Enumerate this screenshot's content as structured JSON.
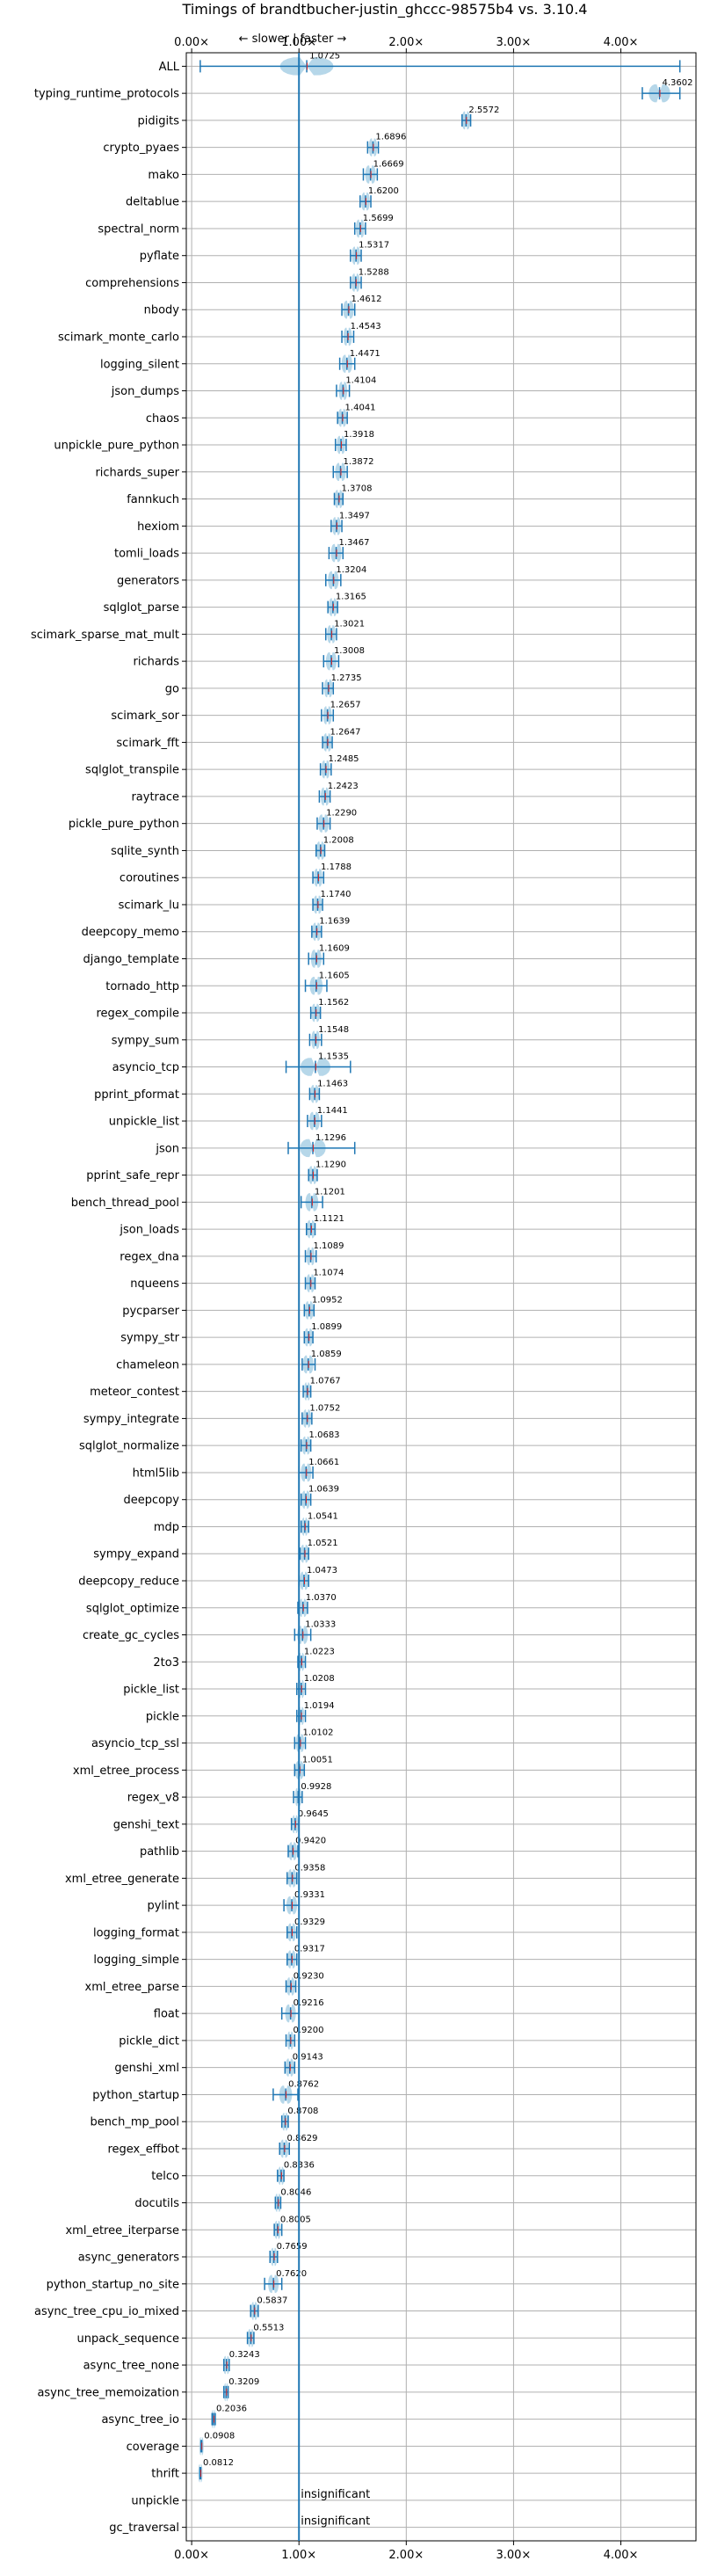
{
  "chart_data": {
    "type": "violin",
    "title": "Timings of brandtbucher-justin_ghccc-98575b4 vs. 3.10.4",
    "direction_hint": "← slower | faster →",
    "x_ticks": [
      "0.00×",
      "1.00×",
      "2.00×",
      "3.00×",
      "4.00×"
    ],
    "x_tick_values": [
      0,
      1,
      2,
      3,
      4
    ],
    "xlim": [
      -0.05,
      4.7
    ],
    "reference_line": 1.0,
    "grid": true,
    "colors": {
      "violin": "#9ecae1",
      "line": "#1f77b4",
      "median": "#d62728",
      "grid": "#b0b0b0"
    },
    "benchmarks": [
      {
        "name": "ALL",
        "value": 1.0725,
        "label": "1.0725",
        "lo": 0.08,
        "hi": 4.55,
        "spread": 0.25
      },
      {
        "name": "typing_runtime_protocols",
        "value": 4.3602,
        "label": "4.3602",
        "lo": 4.2,
        "hi": 4.55,
        "spread": 0.1
      },
      {
        "name": "pidigits",
        "value": 2.5572,
        "label": "2.5572",
        "lo": 2.52,
        "hi": 2.6,
        "spread": 0.04
      },
      {
        "name": "crypto_pyaes",
        "value": 1.6896,
        "label": "1.6896",
        "lo": 1.64,
        "hi": 1.74,
        "spread": 0.04
      },
      {
        "name": "mako",
        "value": 1.6669,
        "label": "1.6669",
        "lo": 1.6,
        "hi": 1.73,
        "spread": 0.05
      },
      {
        "name": "deltablue",
        "value": 1.62,
        "label": "1.6200",
        "lo": 1.57,
        "hi": 1.67,
        "spread": 0.04
      },
      {
        "name": "spectral_norm",
        "value": 1.5699,
        "label": "1.5699",
        "lo": 1.52,
        "hi": 1.62,
        "spread": 0.04
      },
      {
        "name": "pyflate",
        "value": 1.5317,
        "label": "1.5317",
        "lo": 1.48,
        "hi": 1.58,
        "spread": 0.04
      },
      {
        "name": "comprehensions",
        "value": 1.5288,
        "label": "1.5288",
        "lo": 1.48,
        "hi": 1.58,
        "spread": 0.04
      },
      {
        "name": "nbody",
        "value": 1.4612,
        "label": "1.4612",
        "lo": 1.4,
        "hi": 1.52,
        "spread": 0.05
      },
      {
        "name": "scimark_monte_carlo",
        "value": 1.4543,
        "label": "1.4543",
        "lo": 1.4,
        "hi": 1.51,
        "spread": 0.04
      },
      {
        "name": "logging_silent",
        "value": 1.4471,
        "label": "1.4471",
        "lo": 1.38,
        "hi": 1.52,
        "spread": 0.05
      },
      {
        "name": "json_dumps",
        "value": 1.4104,
        "label": "1.4104",
        "lo": 1.35,
        "hi": 1.47,
        "spread": 0.04
      },
      {
        "name": "chaos",
        "value": 1.4041,
        "label": "1.4041",
        "lo": 1.36,
        "hi": 1.45,
        "spread": 0.04
      },
      {
        "name": "unpickle_pure_python",
        "value": 1.3918,
        "label": "1.3918",
        "lo": 1.34,
        "hi": 1.44,
        "spread": 0.04
      },
      {
        "name": "richards_super",
        "value": 1.3872,
        "label": "1.3872",
        "lo": 1.32,
        "hi": 1.45,
        "spread": 0.05
      },
      {
        "name": "fannkuch",
        "value": 1.3708,
        "label": "1.3708",
        "lo": 1.33,
        "hi": 1.41,
        "spread": 0.04
      },
      {
        "name": "hexiom",
        "value": 1.3497,
        "label": "1.3497",
        "lo": 1.3,
        "hi": 1.4,
        "spread": 0.04
      },
      {
        "name": "tomli_loads",
        "value": 1.3467,
        "label": "1.3467",
        "lo": 1.28,
        "hi": 1.41,
        "spread": 0.05
      },
      {
        "name": "generators",
        "value": 1.3204,
        "label": "1.3204",
        "lo": 1.25,
        "hi": 1.39,
        "spread": 0.05
      },
      {
        "name": "sqlglot_parse",
        "value": 1.3165,
        "label": "1.3165",
        "lo": 1.27,
        "hi": 1.36,
        "spread": 0.04
      },
      {
        "name": "scimark_sparse_mat_mult",
        "value": 1.3021,
        "label": "1.3021",
        "lo": 1.25,
        "hi": 1.35,
        "spread": 0.04
      },
      {
        "name": "richards",
        "value": 1.3008,
        "label": "1.3008",
        "lo": 1.23,
        "hi": 1.37,
        "spread": 0.05
      },
      {
        "name": "go",
        "value": 1.2735,
        "label": "1.2735",
        "lo": 1.22,
        "hi": 1.32,
        "spread": 0.04
      },
      {
        "name": "scimark_sor",
        "value": 1.2657,
        "label": "1.2657",
        "lo": 1.21,
        "hi": 1.32,
        "spread": 0.04
      },
      {
        "name": "scimark_fft",
        "value": 1.2647,
        "label": "1.2647",
        "lo": 1.22,
        "hi": 1.31,
        "spread": 0.04
      },
      {
        "name": "sqlglot_transpile",
        "value": 1.2485,
        "label": "1.2485",
        "lo": 1.2,
        "hi": 1.3,
        "spread": 0.04
      },
      {
        "name": "raytrace",
        "value": 1.2423,
        "label": "1.2423",
        "lo": 1.19,
        "hi": 1.29,
        "spread": 0.04
      },
      {
        "name": "pickle_pure_python",
        "value": 1.229,
        "label": "1.2290",
        "lo": 1.17,
        "hi": 1.29,
        "spread": 0.05
      },
      {
        "name": "sqlite_synth",
        "value": 1.2008,
        "label": "1.2008",
        "lo": 1.16,
        "hi": 1.24,
        "spread": 0.04
      },
      {
        "name": "coroutines",
        "value": 1.1788,
        "label": "1.1788",
        "lo": 1.13,
        "hi": 1.23,
        "spread": 0.04
      },
      {
        "name": "scimark_lu",
        "value": 1.174,
        "label": "1.1740",
        "lo": 1.13,
        "hi": 1.22,
        "spread": 0.04
      },
      {
        "name": "deepcopy_memo",
        "value": 1.1639,
        "label": "1.1639",
        "lo": 1.12,
        "hi": 1.21,
        "spread": 0.04
      },
      {
        "name": "django_template",
        "value": 1.1609,
        "label": "1.1609",
        "lo": 1.09,
        "hi": 1.23,
        "spread": 0.05
      },
      {
        "name": "tornado_http",
        "value": 1.1605,
        "label": "1.1605",
        "lo": 1.06,
        "hi": 1.26,
        "spread": 0.06
      },
      {
        "name": "regex_compile",
        "value": 1.1562,
        "label": "1.1562",
        "lo": 1.11,
        "hi": 1.2,
        "spread": 0.04
      },
      {
        "name": "sympy_sum",
        "value": 1.1548,
        "label": "1.1548",
        "lo": 1.1,
        "hi": 1.21,
        "spread": 0.04
      },
      {
        "name": "asyncio_tcp",
        "value": 1.1535,
        "label": "1.1535",
        "lo": 0.88,
        "hi": 1.48,
        "spread": 0.14
      },
      {
        "name": "pprint_pformat",
        "value": 1.1463,
        "label": "1.1463",
        "lo": 1.1,
        "hi": 1.19,
        "spread": 0.04
      },
      {
        "name": "unpickle_list",
        "value": 1.1441,
        "label": "1.1441",
        "lo": 1.08,
        "hi": 1.21,
        "spread": 0.05
      },
      {
        "name": "json",
        "value": 1.1296,
        "label": "1.1296",
        "lo": 0.9,
        "hi": 1.52,
        "spread": 0.12
      },
      {
        "name": "pprint_safe_repr",
        "value": 1.129,
        "label": "1.1290",
        "lo": 1.09,
        "hi": 1.17,
        "spread": 0.04
      },
      {
        "name": "bench_thread_pool",
        "value": 1.1201,
        "label": "1.1201",
        "lo": 1.02,
        "hi": 1.22,
        "spread": 0.06
      },
      {
        "name": "json_loads",
        "value": 1.1121,
        "label": "1.1121",
        "lo": 1.07,
        "hi": 1.15,
        "spread": 0.04
      },
      {
        "name": "regex_dna",
        "value": 1.1089,
        "label": "1.1089",
        "lo": 1.06,
        "hi": 1.16,
        "spread": 0.04
      },
      {
        "name": "nqueens",
        "value": 1.1074,
        "label": "1.1074",
        "lo": 1.06,
        "hi": 1.15,
        "spread": 0.04
      },
      {
        "name": "pycparser",
        "value": 1.0952,
        "label": "1.0952",
        "lo": 1.05,
        "hi": 1.14,
        "spread": 0.04
      },
      {
        "name": "sympy_str",
        "value": 1.0899,
        "label": "1.0899",
        "lo": 1.05,
        "hi": 1.13,
        "spread": 0.04
      },
      {
        "name": "chameleon",
        "value": 1.0859,
        "label": "1.0859",
        "lo": 1.03,
        "hi": 1.15,
        "spread": 0.05
      },
      {
        "name": "meteor_contest",
        "value": 1.0767,
        "label": "1.0767",
        "lo": 1.04,
        "hi": 1.11,
        "spread": 0.03
      },
      {
        "name": "sympy_integrate",
        "value": 1.0752,
        "label": "1.0752",
        "lo": 1.03,
        "hi": 1.12,
        "spread": 0.04
      },
      {
        "name": "sqlglot_normalize",
        "value": 1.0683,
        "label": "1.0683",
        "lo": 1.02,
        "hi": 1.11,
        "spread": 0.04
      },
      {
        "name": "html5lib",
        "value": 1.0661,
        "label": "1.0661",
        "lo": 1.0,
        "hi": 1.13,
        "spread": 0.05
      },
      {
        "name": "deepcopy",
        "value": 1.0639,
        "label": "1.0639",
        "lo": 1.02,
        "hi": 1.11,
        "spread": 0.04
      },
      {
        "name": "mdp",
        "value": 1.0541,
        "label": "1.0541",
        "lo": 1.02,
        "hi": 1.09,
        "spread": 0.03
      },
      {
        "name": "sympy_expand",
        "value": 1.0521,
        "label": "1.0521",
        "lo": 1.01,
        "hi": 1.09,
        "spread": 0.04
      },
      {
        "name": "deepcopy_reduce",
        "value": 1.0473,
        "label": "1.0473",
        "lo": 1.0,
        "hi": 1.09,
        "spread": 0.04
      },
      {
        "name": "sqlglot_optimize",
        "value": 1.037,
        "label": "1.0370",
        "lo": 0.99,
        "hi": 1.08,
        "spread": 0.04
      },
      {
        "name": "create_gc_cycles",
        "value": 1.0333,
        "label": "1.0333",
        "lo": 0.96,
        "hi": 1.11,
        "spread": 0.05
      },
      {
        "name": "2to3",
        "value": 1.0223,
        "label": "1.0223",
        "lo": 0.99,
        "hi": 1.06,
        "spread": 0.03
      },
      {
        "name": "pickle_list",
        "value": 1.0208,
        "label": "1.0208",
        "lo": 0.98,
        "hi": 1.06,
        "spread": 0.03
      },
      {
        "name": "pickle",
        "value": 1.0194,
        "label": "1.0194",
        "lo": 0.98,
        "hi": 1.06,
        "spread": 0.03
      },
      {
        "name": "asyncio_tcp_ssl",
        "value": 1.0102,
        "label": "1.0102",
        "lo": 0.96,
        "hi": 1.06,
        "spread": 0.04
      },
      {
        "name": "xml_etree_process",
        "value": 1.0051,
        "label": "1.0051",
        "lo": 0.96,
        "hi": 1.05,
        "spread": 0.04
      },
      {
        "name": "regex_v8",
        "value": 0.9928,
        "label": "0.9928",
        "lo": 0.95,
        "hi": 1.03,
        "spread": 0.03
      },
      {
        "name": "genshi_text",
        "value": 0.9645,
        "label": "0.9645",
        "lo": 0.93,
        "hi": 1.0,
        "spread": 0.03
      },
      {
        "name": "pathlib",
        "value": 0.942,
        "label": "0.9420",
        "lo": 0.9,
        "hi": 0.99,
        "spread": 0.04
      },
      {
        "name": "xml_etree_generate",
        "value": 0.9358,
        "label": "0.9358",
        "lo": 0.89,
        "hi": 0.98,
        "spread": 0.04
      },
      {
        "name": "pylint",
        "value": 0.9331,
        "label": "0.9331",
        "lo": 0.86,
        "hi": 1.0,
        "spread": 0.05
      },
      {
        "name": "logging_format",
        "value": 0.9329,
        "label": "0.9329",
        "lo": 0.89,
        "hi": 0.98,
        "spread": 0.04
      },
      {
        "name": "logging_simple",
        "value": 0.9317,
        "label": "0.9317",
        "lo": 0.89,
        "hi": 0.98,
        "spread": 0.04
      },
      {
        "name": "xml_etree_parse",
        "value": 0.923,
        "label": "0.9230",
        "lo": 0.88,
        "hi": 0.97,
        "spread": 0.04
      },
      {
        "name": "float",
        "value": 0.9216,
        "label": "0.9216",
        "lo": 0.84,
        "hi": 1.0,
        "spread": 0.05
      },
      {
        "name": "pickle_dict",
        "value": 0.92,
        "label": "0.9200",
        "lo": 0.88,
        "hi": 0.96,
        "spread": 0.03
      },
      {
        "name": "genshi_xml",
        "value": 0.9143,
        "label": "0.9143",
        "lo": 0.87,
        "hi": 0.96,
        "spread": 0.04
      },
      {
        "name": "python_startup",
        "value": 0.8762,
        "label": "0.8762",
        "lo": 0.76,
        "hi": 0.99,
        "spread": 0.06
      },
      {
        "name": "bench_mp_pool",
        "value": 0.8708,
        "label": "0.8708",
        "lo": 0.84,
        "hi": 0.9,
        "spread": 0.03
      },
      {
        "name": "regex_effbot",
        "value": 0.8629,
        "label": "0.8629",
        "lo": 0.82,
        "hi": 0.91,
        "spread": 0.04
      },
      {
        "name": "telco",
        "value": 0.8336,
        "label": "0.8336",
        "lo": 0.8,
        "hi": 0.86,
        "spread": 0.03
      },
      {
        "name": "docutils",
        "value": 0.8046,
        "label": "0.8046",
        "lo": 0.78,
        "hi": 0.83,
        "spread": 0.03
      },
      {
        "name": "xml_etree_iterparse",
        "value": 0.8005,
        "label": "0.8005",
        "lo": 0.77,
        "hi": 0.84,
        "spread": 0.03
      },
      {
        "name": "async_generators",
        "value": 0.7659,
        "label": "0.7659",
        "lo": 0.73,
        "hi": 0.8,
        "spread": 0.03
      },
      {
        "name": "python_startup_no_site",
        "value": 0.762,
        "label": "0.7620",
        "lo": 0.68,
        "hi": 0.84,
        "spread": 0.05
      },
      {
        "name": "async_tree_cpu_io_mixed",
        "value": 0.5837,
        "label": "0.5837",
        "lo": 0.55,
        "hi": 0.62,
        "spread": 0.03
      },
      {
        "name": "unpack_sequence",
        "value": 0.5513,
        "label": "0.5513",
        "lo": 0.52,
        "hi": 0.58,
        "spread": 0.03
      },
      {
        "name": "async_tree_none",
        "value": 0.3243,
        "label": "0.3243",
        "lo": 0.3,
        "hi": 0.35,
        "spread": 0.03
      },
      {
        "name": "async_tree_memoization",
        "value": 0.3209,
        "label": "0.3209",
        "lo": 0.3,
        "hi": 0.34,
        "spread": 0.02
      },
      {
        "name": "async_tree_io",
        "value": 0.2036,
        "label": "0.2036",
        "lo": 0.19,
        "hi": 0.22,
        "spread": 0.02
      },
      {
        "name": "coverage",
        "value": 0.0908,
        "label": "0.0908",
        "lo": 0.088,
        "hi": 0.094,
        "spread": 0.01
      },
      {
        "name": "thrift",
        "value": 0.0812,
        "label": "0.0812",
        "lo": 0.078,
        "hi": 0.085,
        "spread": 0.01
      },
      {
        "name": "unpickle",
        "value": null,
        "label": "insignificant"
      },
      {
        "name": "gc_traversal",
        "value": null,
        "label": "insignificant"
      }
    ]
  }
}
